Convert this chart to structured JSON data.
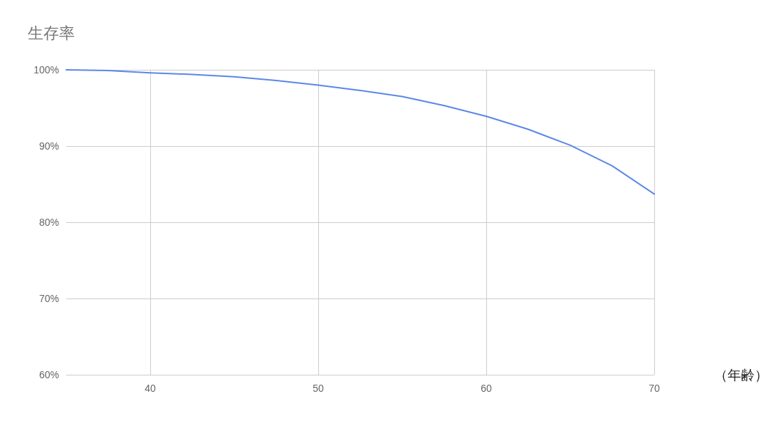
{
  "chart_data": {
    "type": "line",
    "title": "生存率",
    "xlabel": "（年齢）",
    "x": [
      35,
      37.5,
      40,
      42.5,
      45,
      47.5,
      50,
      52.5,
      55,
      57.5,
      60,
      62.5,
      65,
      67.5,
      70
    ],
    "series": [
      {
        "color": "#5b87e8",
        "values": [
          100,
          99.9,
          99.6,
          99.4,
          99.1,
          98.6,
          98.0,
          97.3,
          96.5,
          95.3,
          93.9,
          92.2,
          90.1,
          87.4,
          83.7
        ]
      }
    ],
    "xlim": [
      35,
      70
    ],
    "xticks": [
      40,
      50,
      60,
      70
    ],
    "ylim": [
      60,
      100
    ],
    "yticks": [
      {
        "value": 60,
        "label": "60%"
      },
      {
        "value": 70,
        "label": "70%"
      },
      {
        "value": 80,
        "label": "80%"
      },
      {
        "value": 90,
        "label": "90%"
      },
      {
        "value": 100,
        "label": "100%"
      }
    ],
    "grid": true,
    "marker": "none",
    "line_style": "solid"
  }
}
